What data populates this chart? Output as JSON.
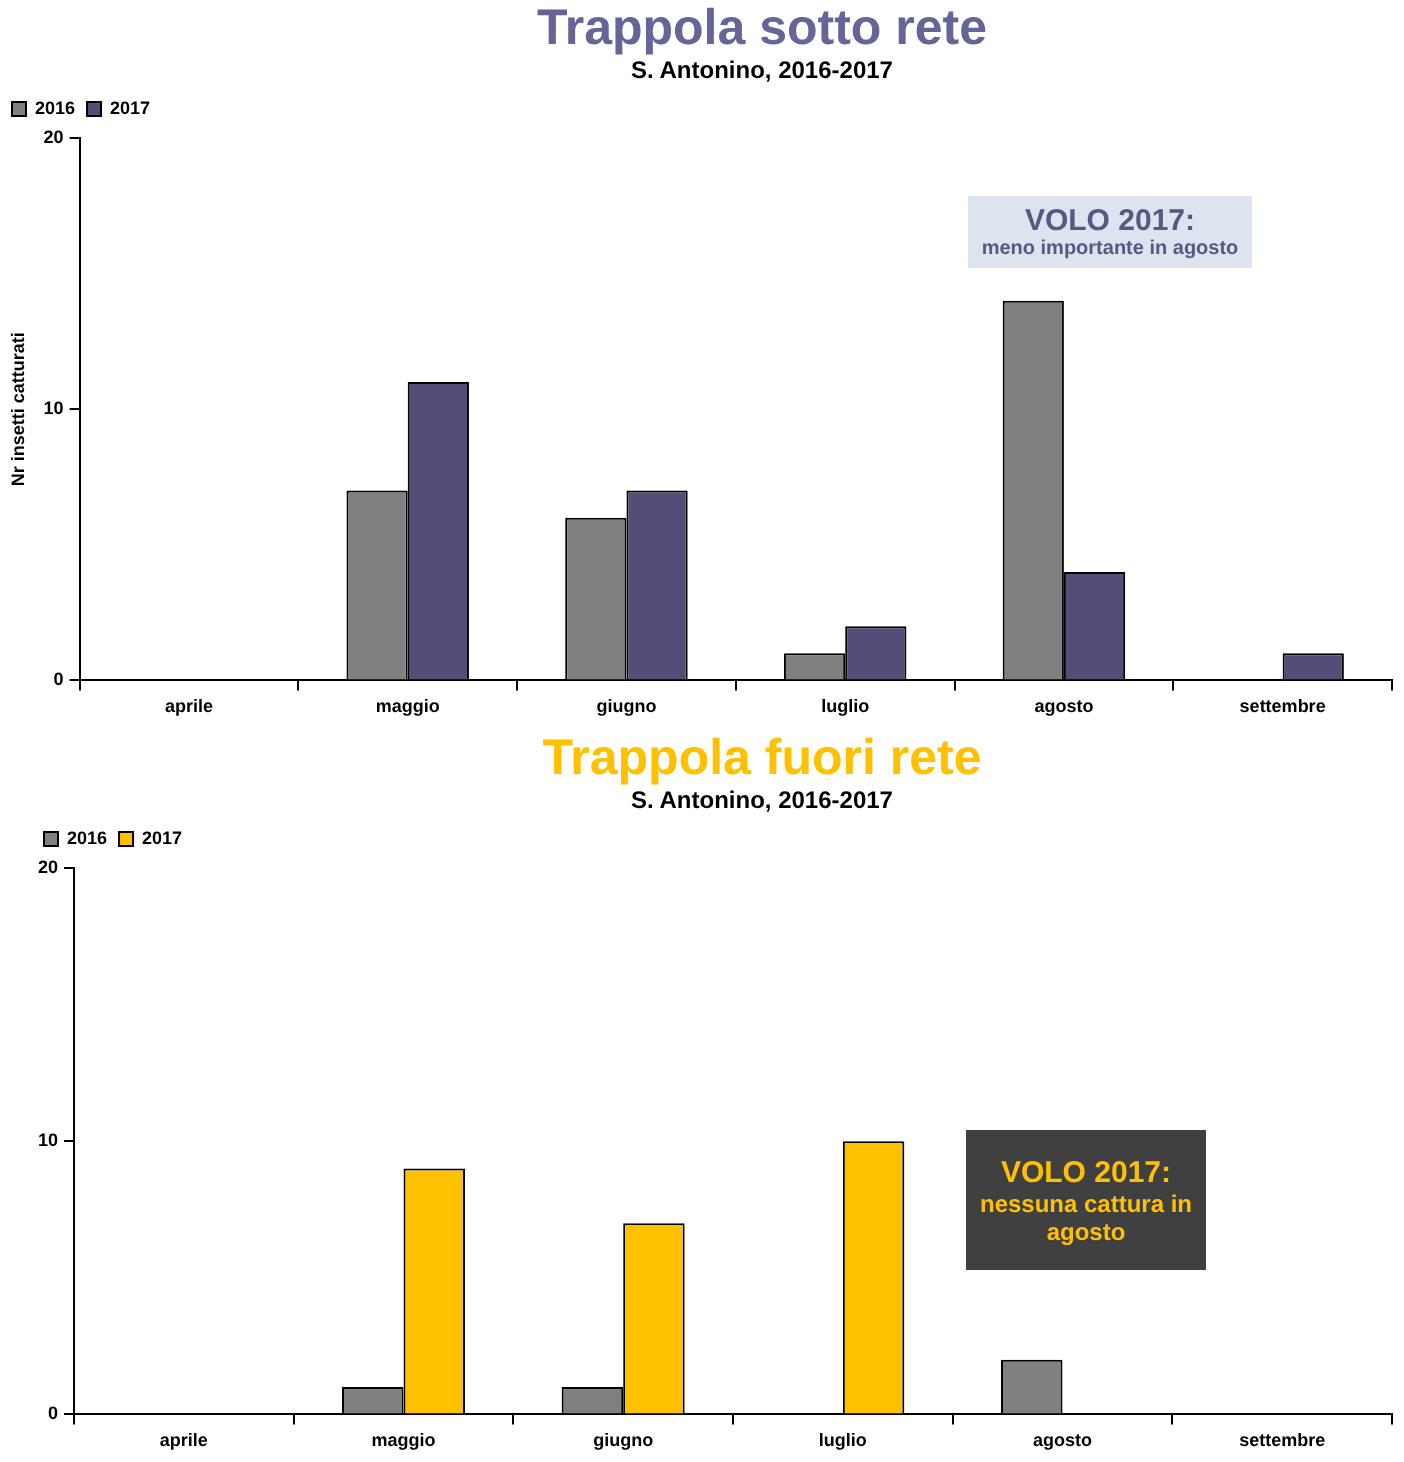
{
  "chart_data": [
    {
      "type": "bar",
      "title": "Trappola sotto rete",
      "subtitle": "S. Antonino, 2016-2017",
      "ylabel": "Nr insetti catturati",
      "categories": [
        "aprile",
        "maggio",
        "giugno",
        "luglio",
        "agosto",
        "settembre"
      ],
      "series": [
        {
          "name": "2016",
          "color": "#808080",
          "values": [
            0,
            7,
            6,
            1,
            14,
            0
          ]
        },
        {
          "name": "2017",
          "color": "#524e78",
          "values": [
            0,
            11,
            7,
            2,
            4,
            1
          ]
        }
      ],
      "ylim": [
        0,
        20
      ],
      "yticks": [
        0,
        10,
        20
      ],
      "grid": false,
      "legend": "top left",
      "annotations": [
        "VOLO 2017:",
        "meno importante in agosto"
      ]
    },
    {
      "type": "bar",
      "title": "Trappola fuori rete",
      "subtitle": "S. Antonino, 2016-2017",
      "categories": [
        "aprile",
        "maggio",
        "giugno",
        "luglio",
        "agosto",
        "settembre"
      ],
      "series": [
        {
          "name": "2016",
          "color": "#808080",
          "values": [
            0,
            1,
            1,
            0,
            2,
            0
          ]
        },
        {
          "name": "2017",
          "color": "#ffc000",
          "values": [
            0,
            9,
            7,
            10,
            0,
            0
          ]
        }
      ],
      "ylim": [
        0,
        20
      ],
      "yticks": [
        0,
        10,
        20
      ],
      "grid": false,
      "legend": "top left",
      "annotations": [
        "VOLO 2017:",
        "nessuna cattura in agosto"
      ]
    }
  ]
}
